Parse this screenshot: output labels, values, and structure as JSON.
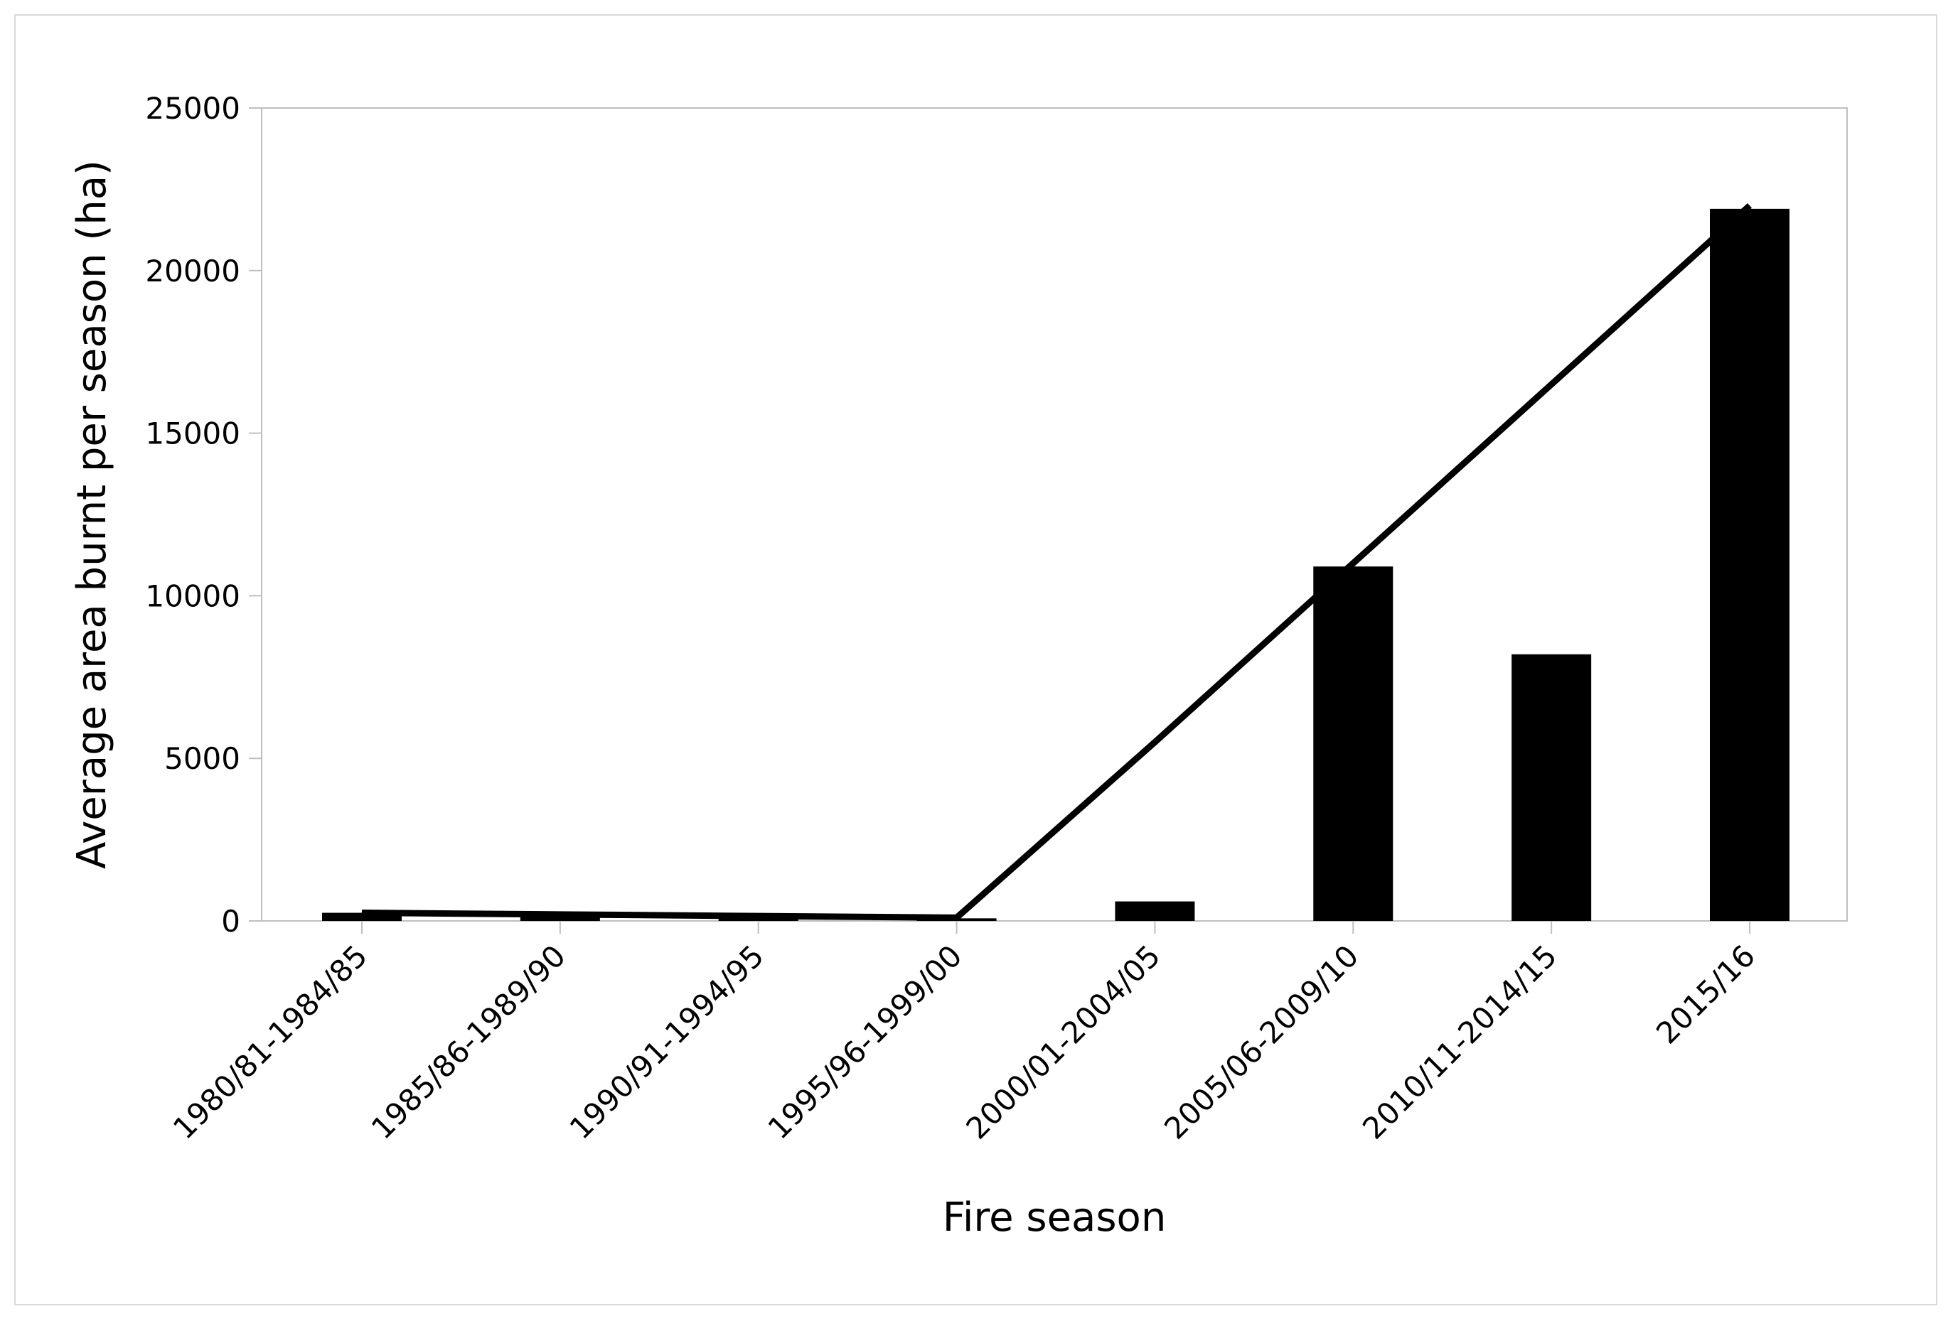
{
  "chart_data": {
    "type": "bar",
    "title": "",
    "xlabel": "Fire season",
    "ylabel": "Average area burnt per season (ha)",
    "ylim": [
      0,
      25000
    ],
    "yticks": [
      0,
      5000,
      10000,
      15000,
      20000,
      25000
    ],
    "grid": false,
    "legend": "none",
    "categories": [
      "1980/81-1984/85",
      "1985/86-1989/90",
      "1990/91-1994/95",
      "1995/96-1999/00",
      "2000/01-2004/05",
      "2005/06-2009/10",
      "2010/11-2014/15",
      "2015/16"
    ],
    "series": [
      {
        "type": "bar",
        "values": [
          250,
          220,
          150,
          80,
          600,
          10900,
          8200,
          21900
        ]
      },
      {
        "type": "line",
        "values": [
          250,
          200,
          150,
          100,
          5500,
          11000,
          16500,
          22000
        ]
      }
    ],
    "colors": {
      "bar": "#000000",
      "line": "#000000",
      "axis": "#bfbfbf",
      "frame": "#d9d9d9"
    }
  }
}
